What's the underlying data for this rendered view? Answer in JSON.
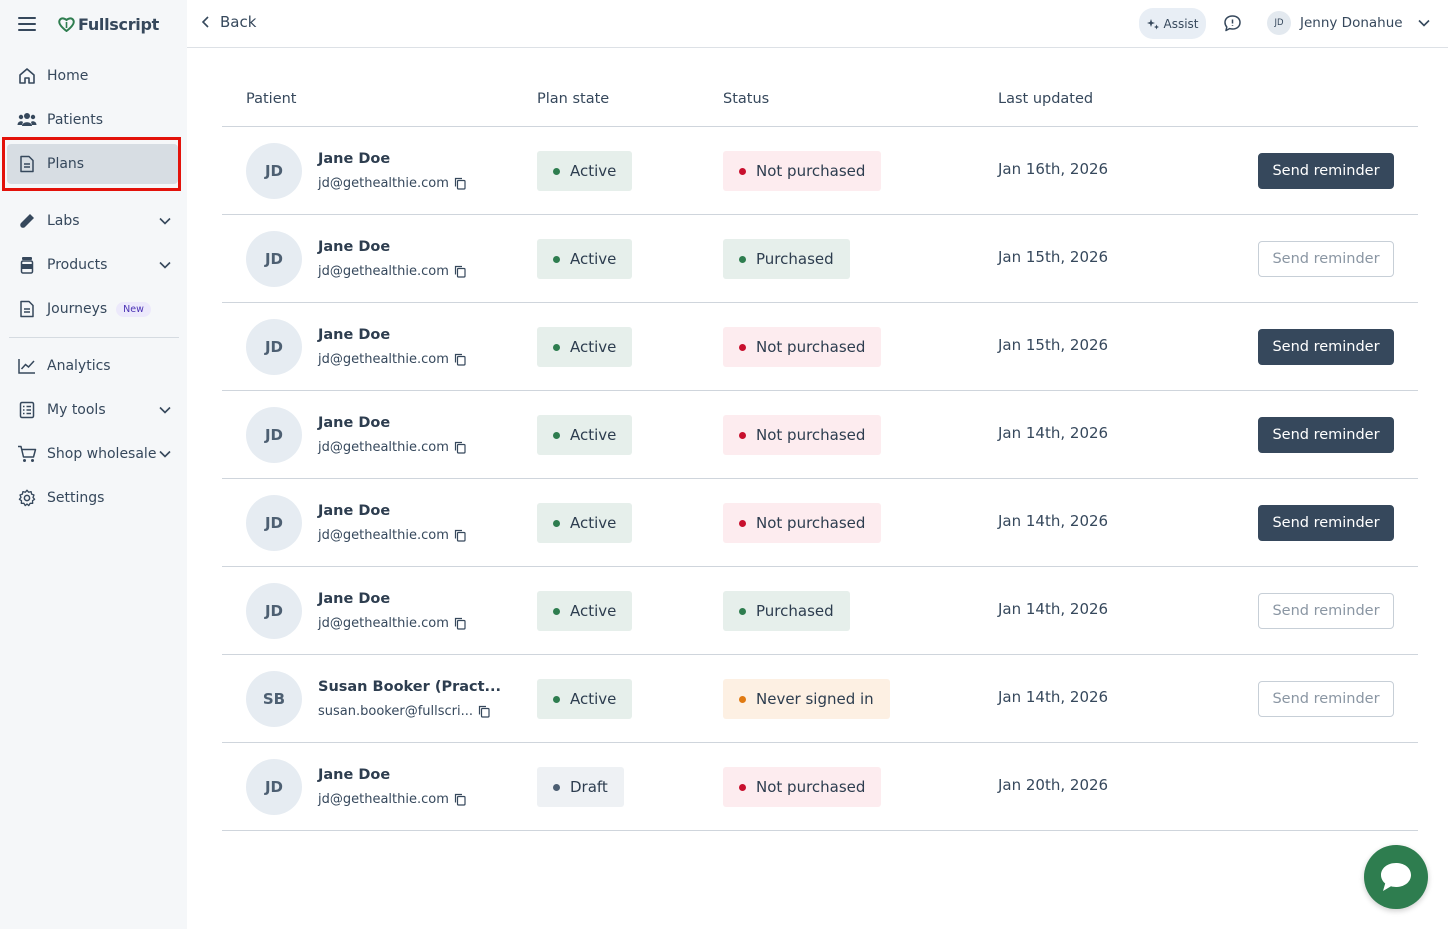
{
  "brand": {
    "name": "Fullscript",
    "accent": "#2e7d4f"
  },
  "sidebar": {
    "items": [
      {
        "label": "Home",
        "icon": "home-icon"
      },
      {
        "label": "Patients",
        "icon": "patients-icon"
      },
      {
        "label": "Plans",
        "icon": "plan-document-icon",
        "active": true
      },
      {
        "label": "Labs",
        "icon": "labs-icon",
        "expandable": true
      },
      {
        "label": "Products",
        "icon": "products-icon",
        "expandable": true
      },
      {
        "label": "Journeys",
        "icon": "journeys-icon",
        "badge": "New"
      },
      {
        "label": "Analytics",
        "icon": "analytics-icon"
      },
      {
        "label": "My tools",
        "icon": "tools-icon",
        "expandable": true
      },
      {
        "label": "Shop wholesale",
        "icon": "cart-icon",
        "expandable": true
      },
      {
        "label": "Settings",
        "icon": "settings-icon"
      }
    ]
  },
  "topbar": {
    "back_label": "Back",
    "assist_label": "Assist",
    "user": {
      "initials": "JD",
      "name": "Jenny Donahue"
    }
  },
  "table": {
    "columns": [
      "Patient",
      "Plan state",
      "Status",
      "Last updated"
    ],
    "rows": [
      {
        "initials": "JD",
        "name": "Jane Doe",
        "email": "jd@gethealthie.com",
        "plan_state": "Active",
        "status": "Not purchased",
        "date": "Jan 16th, 2026",
        "action": "Send reminder",
        "action_style": "primary"
      },
      {
        "initials": "JD",
        "name": "Jane Doe",
        "email": "jd@gethealthie.com",
        "plan_state": "Active",
        "status": "Purchased",
        "date": "Jan 15th, 2026",
        "action": "Send reminder",
        "action_style": "secondary"
      },
      {
        "initials": "JD",
        "name": "Jane Doe",
        "email": "jd@gethealthie.com",
        "plan_state": "Active",
        "status": "Not purchased",
        "date": "Jan 15th, 2026",
        "action": "Send reminder",
        "action_style": "primary"
      },
      {
        "initials": "JD",
        "name": "Jane Doe",
        "email": "jd@gethealthie.com",
        "plan_state": "Active",
        "status": "Not purchased",
        "date": "Jan 14th, 2026",
        "action": "Send reminder",
        "action_style": "primary"
      },
      {
        "initials": "JD",
        "name": "Jane Doe",
        "email": "jd@gethealthie.com",
        "plan_state": "Active",
        "status": "Not purchased",
        "date": "Jan 14th, 2026",
        "action": "Send reminder",
        "action_style": "primary"
      },
      {
        "initials": "JD",
        "name": "Jane Doe",
        "email": "jd@gethealthie.com",
        "plan_state": "Active",
        "status": "Purchased",
        "date": "Jan 14th, 2026",
        "action": "Send reminder",
        "action_style": "secondary"
      },
      {
        "initials": "SB",
        "name": "Susan Booker (Pract...",
        "email": "susan.booker@fullscri...",
        "plan_state": "Active",
        "status": "Never signed in",
        "date": "Jan 14th, 2026",
        "action": "Send reminder",
        "action_style": "secondary"
      },
      {
        "initials": "JD",
        "name": "Jane Doe",
        "email": "jd@gethealthie.com",
        "plan_state": "Draft",
        "status": "Not purchased",
        "date": "Jan 20th, 2026",
        "action": "",
        "action_style": "none"
      }
    ]
  },
  "status_colors": {
    "Active": {
      "bg": "#e6efeb",
      "dot": "#2e7d4f"
    },
    "Draft": {
      "bg": "#eef1f4",
      "dot": "#4d5f72"
    },
    "Not purchased": {
      "bg": "#fdecef",
      "dot": "#c8102e"
    },
    "Purchased": {
      "bg": "#e6efeb",
      "dot": "#2e7d4f"
    },
    "Never signed in": {
      "bg": "#fdf0e3",
      "dot": "#e07a12"
    }
  }
}
